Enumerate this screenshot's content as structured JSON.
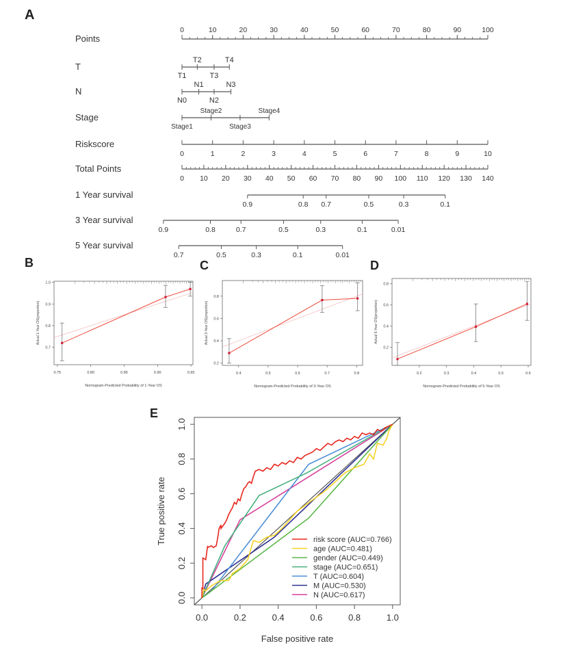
{
  "chart_data": [
    {
      "panel": "A",
      "type": "nomogram",
      "rows": [
        {
          "label": "Points",
          "axis": "top",
          "min": 0,
          "max": 100,
          "ticks": [
            0,
            10,
            20,
            30,
            40,
            50,
            60,
            70,
            80,
            90,
            100
          ],
          "labels": [
            "0",
            "10",
            "20",
            "30",
            "40",
            "50",
            "60",
            "70",
            "80",
            "90",
            "100"
          ],
          "minor": 2
        },
        {
          "label": "T",
          "categorical": true,
          "points": [
            0,
            5,
            10.5,
            15.5
          ],
          "labels": [
            "T1",
            "T2",
            "T3",
            "T4"
          ],
          "positions": [
            "below",
            "above",
            "below",
            "above"
          ]
        },
        {
          "label": "N",
          "categorical": true,
          "points": [
            0,
            5.5,
            10.5,
            16
          ],
          "labels": [
            "N0",
            "N1",
            "N2",
            "N3"
          ],
          "positions": [
            "below",
            "above",
            "below",
            "above"
          ]
        },
        {
          "label": "Stage",
          "categorical": true,
          "points": [
            0,
            9.5,
            19,
            28.5
          ],
          "labels": [
            "Stage1",
            "Stage2",
            "Stage3",
            "Stage4"
          ],
          "positions": [
            "below",
            "above",
            "below",
            "above"
          ]
        },
        {
          "label": "Riskscore",
          "axis": "bottom",
          "min": 0,
          "max": 10,
          "ticks": [
            0,
            1,
            2,
            3,
            4,
            5,
            6,
            7,
            8,
            9,
            10
          ],
          "labels": [
            "0",
            "1",
            "2",
            "3",
            "4",
            "5",
            "6",
            "7",
            "8",
            "9",
            "10"
          ]
        },
        {
          "label": "Total Points",
          "axis": "bottom",
          "min": 0,
          "max": 140,
          "ticks": [
            0,
            10,
            20,
            30,
            40,
            50,
            60,
            70,
            80,
            90,
            100,
            110,
            120,
            130,
            140
          ],
          "labels": [
            "0",
            "10",
            "20",
            "30",
            "40",
            "50",
            "60",
            "70",
            "80",
            "90",
            "100",
            "110",
            "120",
            "130",
            "140"
          ],
          "minor": 2
        },
        {
          "label": "1 Year survival",
          "axis": "bottom",
          "probability": true,
          "labels": [
            "0.9",
            "0.8",
            "0.7",
            "0.5",
            "0.3",
            "0.1"
          ],
          "total_points": [
            30,
            55.5,
            66,
            85.5,
            101.5,
            120.5
          ]
        },
        {
          "label": "3 Year survival",
          "axis": "bottom",
          "probability": true,
          "labels": [
            "0.9",
            "0.8",
            "0.7",
            "0.5",
            "0.3",
            "0.1",
            "0.01"
          ],
          "total_points": [
            -8.5,
            13,
            27,
            46.5,
            63.5,
            82.5,
            99
          ]
        },
        {
          "label": "5 Year survival",
          "axis": "bottom",
          "probability": true,
          "labels": [
            "0.7",
            "0.5",
            "0.3",
            "0.1",
            "0.01"
          ],
          "total_points": [
            -1.5,
            18,
            34,
            53,
            73.5
          ]
        }
      ]
    },
    {
      "panel": "B",
      "type": "line",
      "xlabel": "Nomogram-Predicted Probability of 1-Year OS",
      "ylabel": "Actual 1-Year OS(proportion)",
      "xlim": [
        0.745,
        0.953
      ],
      "ylim": [
        0.62,
        1.005
      ],
      "xticks": [
        "0.75",
        "0.80",
        "0.85",
        "0.90",
        "0.95"
      ],
      "xtick_values": [
        0.75,
        0.8,
        0.85,
        0.9,
        0.95
      ],
      "yticks": [
        "0.7",
        "0.8",
        "0.9",
        "1.0"
      ],
      "ytick_values": [
        0.7,
        0.8,
        0.9,
        1.0
      ],
      "points": [
        {
          "x": 0.757,
          "y": 0.72,
          "lo": 0.638,
          "hi": 0.812
        },
        {
          "x": 0.912,
          "y": 0.932,
          "lo": 0.884,
          "hi": 0.986
        },
        {
          "x": 0.949,
          "y": 0.969,
          "lo": 0.936,
          "hi": 1.0
        }
      ]
    },
    {
      "panel": "C",
      "type": "line",
      "xlabel": "Nomogram-Predicted Probability of 3-Year OS",
      "ylabel": "Actual 3-Year OS(proportion)",
      "xlim": [
        0.345,
        0.82
      ],
      "ylim": [
        0.18,
        0.94
      ],
      "xticks": [
        "0.4",
        "0.5",
        "0.6",
        "0.7",
        "0.8"
      ],
      "xtick_values": [
        0.4,
        0.5,
        0.6,
        0.7,
        0.8
      ],
      "yticks": [
        "0.2",
        "0.4",
        "0.6",
        "0.8"
      ],
      "ytick_values": [
        0.2,
        0.4,
        0.6,
        0.8
      ],
      "points": [
        {
          "x": 0.368,
          "y": 0.29,
          "lo": 0.2,
          "hi": 0.42
        },
        {
          "x": 0.683,
          "y": 0.765,
          "lo": 0.655,
          "hi": 0.895
        },
        {
          "x": 0.803,
          "y": 0.78,
          "lo": 0.67,
          "hi": 0.92
        }
      ]
    },
    {
      "panel": "D",
      "type": "line",
      "xlabel": "Nomogram-Predicted Probability of 5-Year OS",
      "ylabel": "Actual 5-Year OS(proportion)",
      "xlim": [
        0.1,
        0.61
      ],
      "ylim": [
        0.03,
        0.85
      ],
      "xticks": [
        "0.2",
        "0.3",
        "0.4",
        "0.5",
        "0.6"
      ],
      "xtick_values": [
        0.2,
        0.3,
        0.4,
        0.5,
        0.6
      ],
      "yticks": [
        "0.2",
        "0.4",
        "0.6",
        "0.8"
      ],
      "ytick_values": [
        0.2,
        0.4,
        0.6,
        0.8
      ],
      "points": [
        {
          "x": 0.12,
          "y": 0.09,
          "lo": 0.03,
          "hi": 0.245
        },
        {
          "x": 0.408,
          "y": 0.395,
          "lo": 0.255,
          "hi": 0.61
        },
        {
          "x": 0.596,
          "y": 0.61,
          "lo": 0.455,
          "hi": 0.82
        }
      ]
    },
    {
      "panel": "E",
      "type": "line",
      "xlabel": "False positive rate",
      "ylabel": "True positive rate",
      "xlim": [
        -0.04,
        1.04
      ],
      "ylim": [
        -0.04,
        1.04
      ],
      "xticks": [
        "0.0",
        "0.2",
        "0.4",
        "0.6",
        "0.8",
        "1.0"
      ],
      "xtick_values": [
        0,
        0.2,
        0.4,
        0.6,
        0.8,
        1.0
      ],
      "yticks": [
        "0.0",
        "0.2",
        "0.4",
        "0.6",
        "0.8",
        "1.0"
      ],
      "ytick_values": [
        0,
        0.2,
        0.4,
        0.6,
        0.8,
        1.0
      ],
      "series": [
        {
          "name": "risk score (AUC=0.766)",
          "color": "#e8261e",
          "x": [
            0,
            0,
            0.005,
            0.005,
            0.02,
            0.03,
            0.03,
            0.05,
            0.06,
            0.075,
            0.08,
            0.085,
            0.09,
            0.1,
            0.1,
            0.12,
            0.13,
            0.14,
            0.15,
            0.16,
            0.17,
            0.18,
            0.19,
            0.2,
            0.21,
            0.22,
            0.23,
            0.24,
            0.25,
            0.26,
            0.27,
            0.28,
            0.3,
            0.32,
            0.34,
            0.36,
            0.38,
            0.4,
            0.42,
            0.44,
            0.46,
            0.48,
            0.5,
            0.52,
            0.54,
            0.56,
            0.58,
            0.6,
            0.62,
            0.64,
            0.66,
            0.68,
            0.7,
            0.72,
            0.74,
            0.76,
            0.78,
            0.8,
            0.82,
            0.84,
            0.86,
            0.88,
            0.9,
            0.92,
            0.94,
            0.96,
            0.98,
            1.0
          ],
          "y": [
            0,
            0.06,
            0.05,
            0.23,
            0.22,
            0.3,
            0.29,
            0.3,
            0.29,
            0.3,
            0.33,
            0.36,
            0.4,
            0.42,
            0.4,
            0.43,
            0.45,
            0.48,
            0.5,
            0.52,
            0.55,
            0.54,
            0.57,
            0.56,
            0.6,
            0.63,
            0.64,
            0.66,
            0.67,
            0.66,
            0.7,
            0.73,
            0.74,
            0.73,
            0.75,
            0.74,
            0.77,
            0.76,
            0.78,
            0.77,
            0.79,
            0.78,
            0.81,
            0.8,
            0.82,
            0.83,
            0.84,
            0.86,
            0.85,
            0.87,
            0.89,
            0.88,
            0.9,
            0.91,
            0.9,
            0.92,
            0.91,
            0.93,
            0.92,
            0.95,
            0.94,
            0.95,
            0.94,
            0.97,
            0.96,
            0.98,
            0.99,
            1.0
          ]
        },
        {
          "name": "age (AUC=0.481)",
          "color": "#f5d327",
          "x": [
            0,
            0.01,
            0.02,
            0.05,
            0.1,
            0.14,
            0.16,
            0.2,
            0.24,
            0.27,
            0.3,
            0.34,
            0.38,
            0.42,
            0.46,
            0.5,
            0.55,
            0.6,
            0.65,
            0.7,
            0.75,
            0.8,
            0.85,
            0.88,
            0.9,
            0.92,
            0.95,
            0.97,
            0.98,
            1.0
          ],
          "y": [
            0,
            0.05,
            0.04,
            0.07,
            0.1,
            0.1,
            0.14,
            0.17,
            0.22,
            0.33,
            0.32,
            0.35,
            0.36,
            0.4,
            0.45,
            0.5,
            0.54,
            0.58,
            0.62,
            0.67,
            0.72,
            0.75,
            0.77,
            0.83,
            0.8,
            0.89,
            0.88,
            0.92,
            0.96,
            1.0
          ]
        },
        {
          "name": "gender (AUC=0.449)",
          "color": "#5cb84a",
          "x": [
            0,
            0.56,
            1.0
          ],
          "y": [
            0,
            0.46,
            1.0
          ]
        },
        {
          "name": "stage (AUC=0.651)",
          "color": "#47b07f",
          "x": [
            0,
            0.12,
            0.3,
            0.55,
            1.0
          ],
          "y": [
            0,
            0.3,
            0.59,
            0.72,
            1.0
          ]
        },
        {
          "name": "T (AUC=0.604)",
          "color": "#4d8fd6",
          "x": [
            0,
            0.05,
            0.56,
            1.0
          ],
          "y": [
            0,
            0.04,
            0.77,
            1.0
          ]
        },
        {
          "name": "M (AUC=0.530)",
          "color": "#2e3192",
          "x": [
            0,
            0.02,
            0.38,
            1.0
          ],
          "y": [
            0,
            0.08,
            0.35,
            1.0
          ]
        },
        {
          "name": "N (AUC=0.617)",
          "color": "#d63f9b",
          "x": [
            0,
            0.2,
            1.0
          ],
          "y": [
            0,
            0.45,
            1.0
          ]
        }
      ],
      "reference_line": {
        "color": "#555555",
        "x": [
          -0.04,
          1.04
        ],
        "y": [
          -0.04,
          1.04
        ]
      },
      "legend_placement": "bottom-right"
    }
  ],
  "panel_labels": [
    "A",
    "B",
    "C",
    "D",
    "E"
  ]
}
